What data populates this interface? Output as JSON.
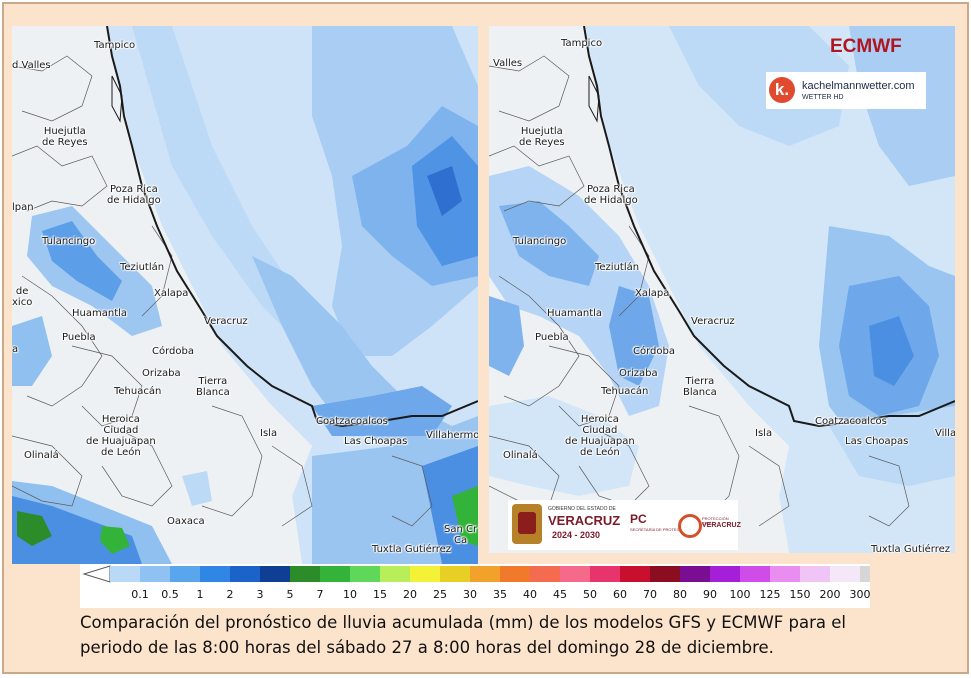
{
  "maps": {
    "left": {
      "cities": [
        {
          "name": "Tampico",
          "lines": [
            "Tampico"
          ]
        },
        {
          "name": "Valles",
          "lines": [
            "d Valles"
          ]
        },
        {
          "name": "Huejutla",
          "lines": [
            "Huejutla",
            "de Reyes"
          ]
        },
        {
          "name": "Poza Rica",
          "lines": [
            "Poza Rica",
            "de Hidalgo"
          ]
        },
        {
          "name": "Tulancingo",
          "lines": [
            "Tulancingo"
          ]
        },
        {
          "name": "Teziutlan",
          "lines": [
            "Teziutlán"
          ]
        },
        {
          "name": "Xalapa",
          "lines": [
            "Xalapa"
          ]
        },
        {
          "name": "Huamantla",
          "lines": [
            "Huamantla"
          ]
        },
        {
          "name": "Veracruz",
          "lines": [
            "Veracruz"
          ]
        },
        {
          "name": "Puebla",
          "lines": [
            "Puebla"
          ]
        },
        {
          "name": "Cordoba",
          "lines": [
            "Córdoba"
          ]
        },
        {
          "name": "Orizaba",
          "lines": [
            "Orizaba"
          ]
        },
        {
          "name": "Tierra Blanca",
          "lines": [
            "Tierra",
            "Blanca"
          ]
        },
        {
          "name": "Tehuacan",
          "lines": [
            "Tehuacán"
          ]
        },
        {
          "name": "Heroica Ciudad",
          "lines": [
            "Heroica",
            "Ciudad",
            "de Huajuapan",
            "de León"
          ]
        },
        {
          "name": "Coatzacoalcos",
          "lines": [
            "Coatzacoalcos"
          ]
        },
        {
          "name": "Las Choapas",
          "lines": [
            "Las Choapas"
          ]
        },
        {
          "name": "Villahermosa",
          "lines": [
            "Villahermos"
          ]
        },
        {
          "name": "Isla",
          "lines": [
            "Isla"
          ]
        },
        {
          "name": "Oaxaca",
          "lines": [
            "Oaxaca"
          ]
        },
        {
          "name": "Tlaxiaco",
          "lines": [
            "Olinalá"
          ]
        },
        {
          "name": "Tuxtla",
          "lines": [
            "Tuxtla Gutiérrez"
          ]
        },
        {
          "name": "San Cristobal",
          "lines": [
            "San Cr",
            "Ca"
          ]
        },
        {
          "name": "Pan",
          "lines": [
            "lpan"
          ]
        },
        {
          "name": "Mex",
          "lines": [
            "de",
            "xico"
          ]
        },
        {
          "name": "Mex2",
          "lines": [
            "a"
          ]
        }
      ]
    },
    "right": {
      "model_label": "ECMWF",
      "logo": {
        "badge": "k.",
        "name": "kachelmannwetter.com",
        "sub": "WETTER HD"
      },
      "cities": [
        {
          "name": "Tampico",
          "lines": [
            "Tampico"
          ]
        },
        {
          "name": "Valles",
          "lines": [
            "Valles"
          ]
        },
        {
          "name": "Huejutla",
          "lines": [
            "Huejutla",
            "de Reyes"
          ]
        },
        {
          "name": "Poza Rica",
          "lines": [
            "Poza Rica",
            "de Hidalgo"
          ]
        },
        {
          "name": "Tulancingo",
          "lines": [
            "Tulancingo"
          ]
        },
        {
          "name": "Teziutlan",
          "lines": [
            "Teziutlán"
          ]
        },
        {
          "name": "Xalapa",
          "lines": [
            "Xalapa"
          ]
        },
        {
          "name": "Huamantla",
          "lines": [
            "Huamantla"
          ]
        },
        {
          "name": "Veracruz",
          "lines": [
            "Veracruz"
          ]
        },
        {
          "name": "Puebla",
          "lines": [
            "Puebla"
          ]
        },
        {
          "name": "Cordoba",
          "lines": [
            "Córdoba"
          ]
        },
        {
          "name": "Orizaba",
          "lines": [
            "Orizaba"
          ]
        },
        {
          "name": "Tierra Blanca",
          "lines": [
            "Tierra",
            "Blanca"
          ]
        },
        {
          "name": "Tehuacan",
          "lines": [
            "Tehuacán"
          ]
        },
        {
          "name": "Heroica Ciudad",
          "lines": [
            "Heroica",
            "Ciudad",
            "de Huajuapan",
            "de León"
          ]
        },
        {
          "name": "Coatzacoalcos",
          "lines": [
            "Coatzacoalcos"
          ]
        },
        {
          "name": "Las Choapas",
          "lines": [
            "Las Choapas"
          ]
        },
        {
          "name": "Villa",
          "lines": [
            "Villa"
          ]
        },
        {
          "name": "Isla",
          "lines": [
            "Isla"
          ]
        },
        {
          "name": "Olinala",
          "lines": [
            "Olinalá"
          ]
        },
        {
          "name": "Tuxtla",
          "lines": [
            "Tuxtla Gutiérrez"
          ]
        }
      ]
    }
  },
  "gov_banner": {
    "small": "GOBIERNO DEL ESTADO DE",
    "state": "VERACRUZ",
    "years": "2024 - 2030",
    "pc": "PC",
    "pc_sub": "SECRETARÍA DE PROTECCIÓN CIVIL",
    "pc2_small": "PROTECCIÓN CIVIL",
    "pc2_state": "VERACRUZ"
  },
  "legend": {
    "ticks": [
      "0.1",
      "0.5",
      "1",
      "2",
      "3",
      "5",
      "7",
      "10",
      "15",
      "20",
      "25",
      "30",
      "35",
      "40",
      "45",
      "50",
      "60",
      "70",
      "80",
      "90",
      "100",
      "125",
      "150",
      "200",
      "300"
    ],
    "colors": [
      "#b9d9f7",
      "#8fc2f2",
      "#5aa6ec",
      "#2f86e3",
      "#1c63c9",
      "#0e3f94",
      "#2c8c2a",
      "#33b33a",
      "#5fd85a",
      "#b7ee5a",
      "#f4f236",
      "#e8cf26",
      "#f2a22a",
      "#f1792b",
      "#f46b4f",
      "#f56a8a",
      "#e8346d",
      "#c8102e",
      "#8c0d1f",
      "#7a0e93",
      "#a61fd8",
      "#d04ce9",
      "#e98df1",
      "#f0c4f4",
      "#f4e7f7",
      "#d6d6d6"
    ]
  },
  "caption": {
    "line1": "Comparación del pronóstico de lluvia acumulada (mm) de los modelos GFS y ECMWF para el",
    "line2": "periodo de las 8:00 horas del sábado 27 a 8:00 horas del domingo 28 de diciembre."
  }
}
